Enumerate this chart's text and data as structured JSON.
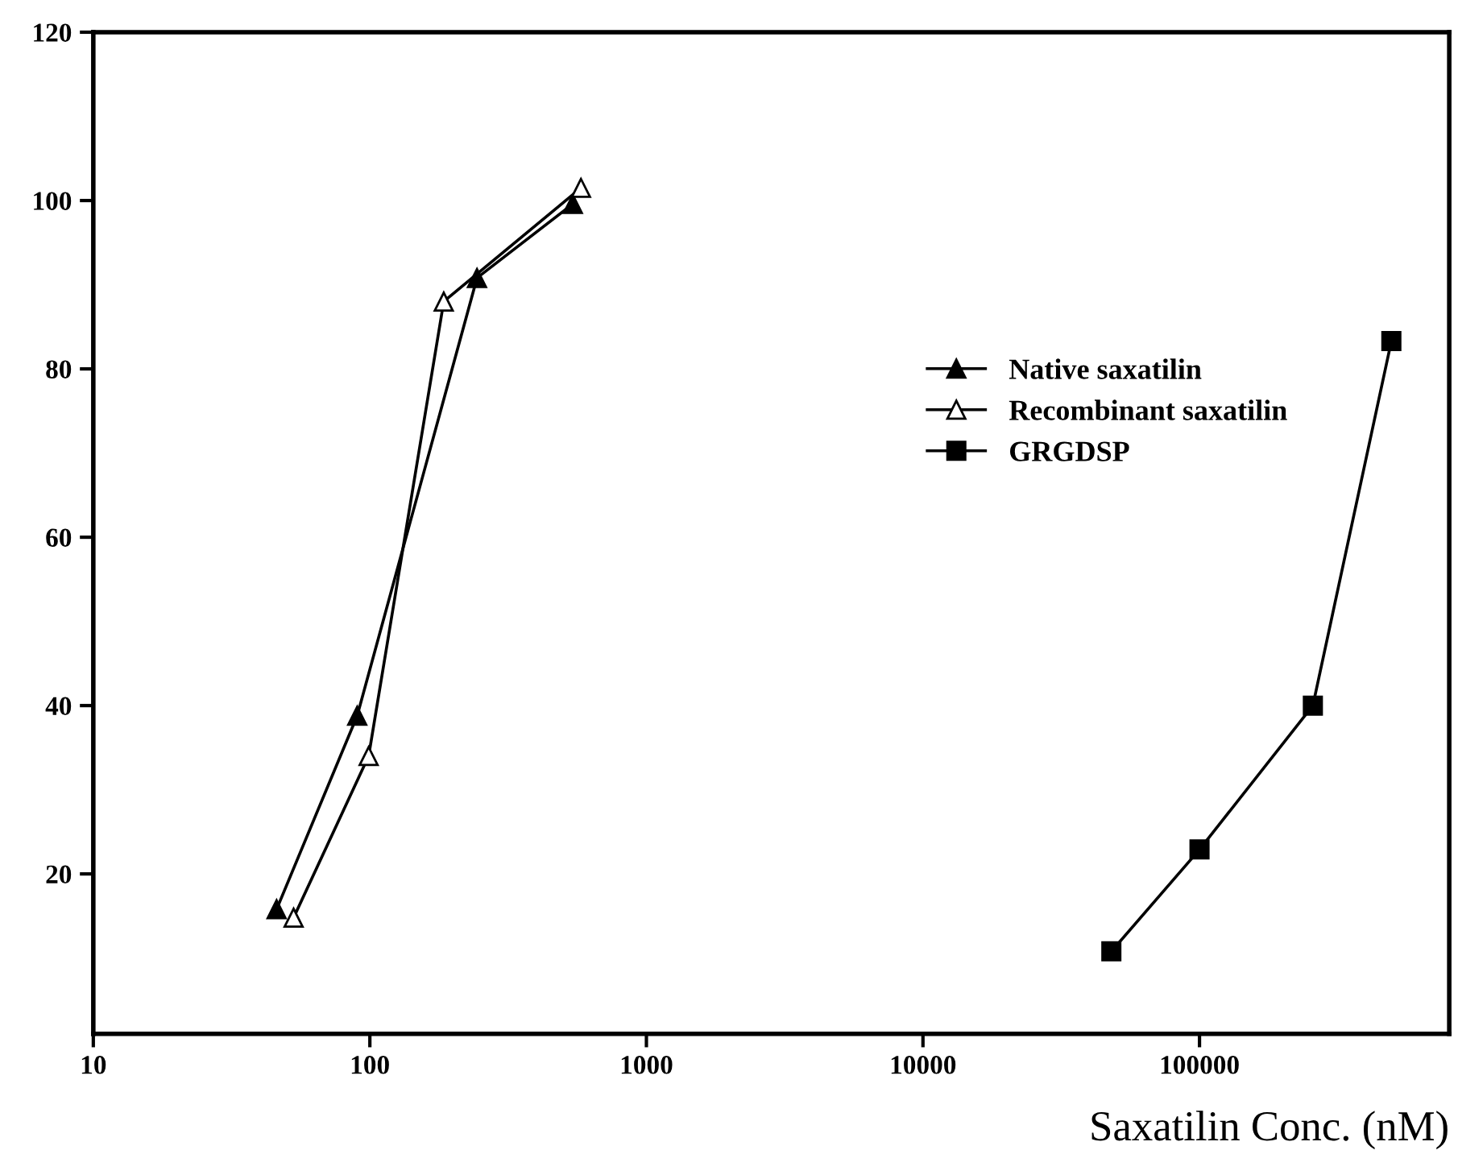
{
  "chart_data": {
    "type": "line",
    "xlabel": "Saxatilin Conc. (nM)",
    "log": "x",
    "xlim": [
      10,
      800000
    ],
    "xticks": [
      10,
      100,
      1000,
      10000,
      100000
    ],
    "ylim": [
      1,
      120
    ],
    "yticks": [
      20,
      40,
      60,
      80,
      100,
      120
    ],
    "grid": false,
    "legend": "right",
    "line_style": "solid",
    "series": [
      {
        "name": "Native saxatilin",
        "color": "#000000",
        "marker": "triangle",
        "x": [
          46,
          90,
          244,
          542
        ],
        "values": [
          15.8,
          38.8,
          90.8,
          99.6
        ]
      },
      {
        "name": "Recombinant saxatilin",
        "color": "#000000",
        "marker": "triangle",
        "x": [
          53,
          99,
          185,
          580
        ],
        "values": [
          14.8,
          34.0,
          88,
          101.5
        ]
      },
      {
        "name": "GRGDSP",
        "color": "#000000",
        "marker": "square",
        "x": [
          48000,
          100000,
          257000,
          494000
        ],
        "values": [
          10.8,
          22.9,
          40,
          83.3
        ]
      }
    ]
  }
}
